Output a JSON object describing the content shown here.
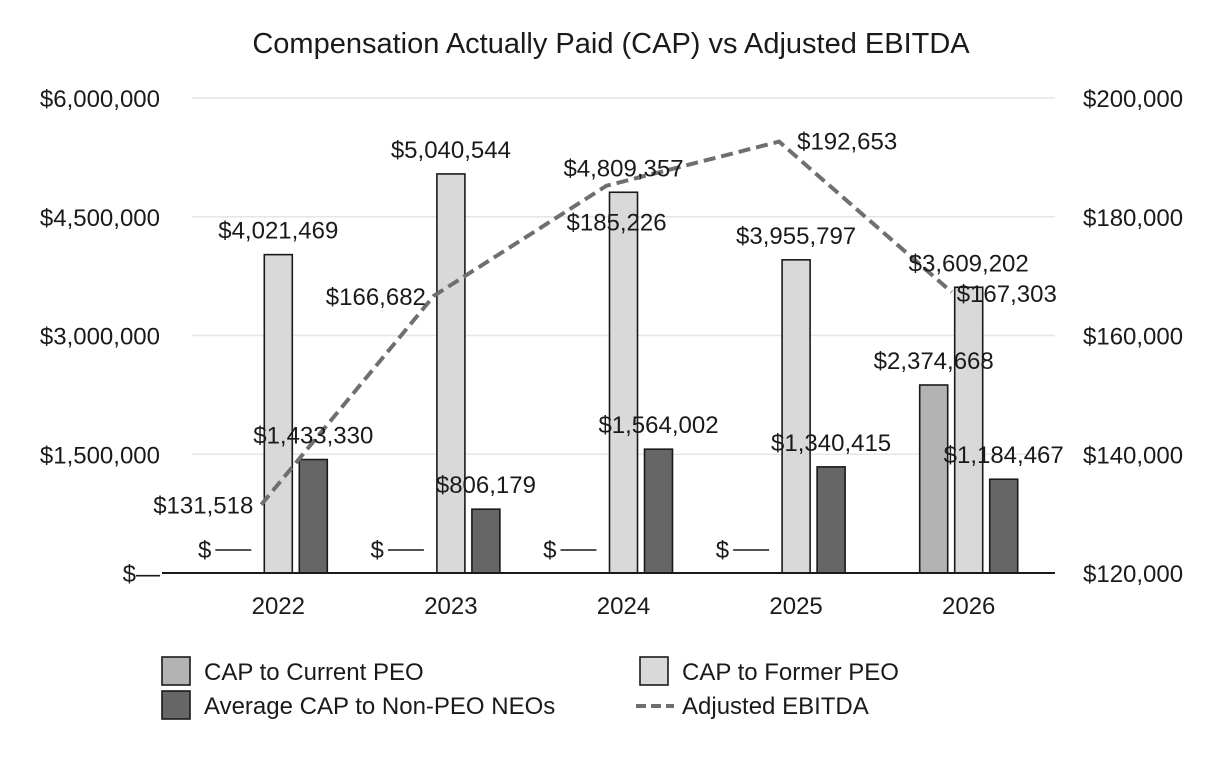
{
  "chart_data": {
    "type": "bar",
    "title": "Compensation Actually Paid (CAP) vs Adjusted EBITDA",
    "categories": [
      "2022",
      "2023",
      "2024",
      "2025",
      "2026"
    ],
    "left_axis": {
      "range": [
        0,
        6000000
      ],
      "ticks": [
        0,
        1500000,
        3000000,
        4500000,
        6000000
      ],
      "tick_labels": [
        "$—",
        "$1,500,000",
        "$3,000,000",
        "$4,500,000",
        "$6,000,000"
      ]
    },
    "right_axis": {
      "range": [
        120000,
        200000
      ],
      "ticks": [
        120000,
        140000,
        160000,
        180000,
        200000
      ],
      "tick_labels": [
        "$120,000",
        "$140,000",
        "$160,000",
        "$180,000",
        "$200,000"
      ]
    },
    "grid": true,
    "legend_position": "bottom",
    "series": [
      {
        "name": "CAP to Current PEO",
        "kind": "bar",
        "axis": "left",
        "color": "#b3b3b3",
        "values": [
          0,
          0,
          0,
          0,
          2374668
        ],
        "labels": [
          "$—",
          "$—",
          "$—",
          "$—",
          "$2,374,668"
        ]
      },
      {
        "name": "CAP to Former PEO",
        "kind": "bar",
        "axis": "left",
        "color": "#d9d9d9",
        "values": [
          4021469,
          5040544,
          4809357,
          3955797,
          3609202
        ],
        "labels": [
          "$4,021,469",
          "$5,040,544",
          "$4,809,357",
          "$3,955,797",
          "$3,609,202"
        ]
      },
      {
        "name": "Average CAP to Non-PEO NEOs",
        "kind": "bar",
        "axis": "left",
        "color": "#666666",
        "values": [
          1433330,
          806179,
          1564002,
          1340415,
          1184467
        ],
        "labels": [
          "$1,433,330",
          "$806,179",
          "$1,564,002",
          "$1,340,415",
          "$1,184,467"
        ]
      },
      {
        "name": "Adjusted EBITDA",
        "kind": "line",
        "axis": "right",
        "color": "#6f6f6f",
        "values": [
          131518,
          166682,
          185226,
          192653,
          167303
        ],
        "labels": [
          "$131,518",
          "$166,682",
          "$185,226",
          "$192,653",
          "$167,303"
        ]
      }
    ]
  }
}
